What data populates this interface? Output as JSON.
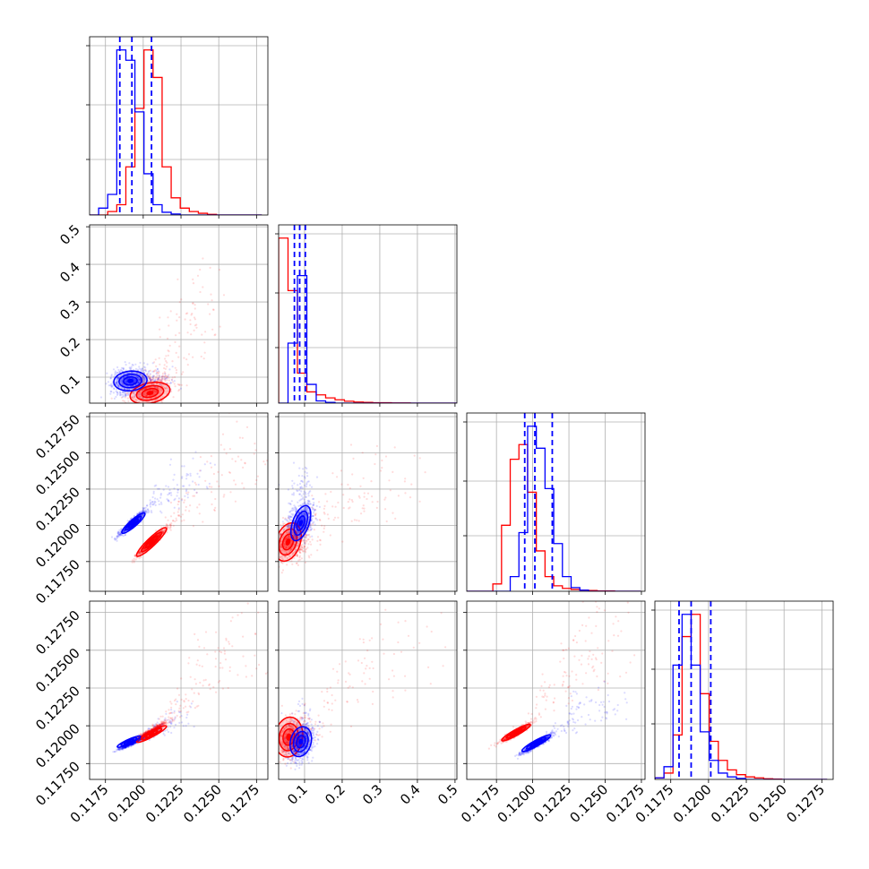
{
  "chart_data": {
    "type": "corner",
    "series_colors": {
      "a": "#0000ff",
      "b": "#ff0000"
    },
    "grid": true,
    "x_ticks": {
      "param1": [
        "0.1175",
        "0.1200",
        "0.1225",
        "0.1250",
        "0.1275"
      ],
      "param2": [
        "0.1",
        "0.2",
        "0.3",
        "0.4",
        "0.5"
      ],
      "param3": [
        "0.1175",
        "0.1200",
        "0.1225",
        "0.1250",
        "0.1275"
      ],
      "param4": [
        "0.1175",
        "0.1200",
        "0.1225",
        "0.1250",
        "0.1275"
      ]
    },
    "y_ticks": {
      "param2": [
        "0.1",
        "0.2",
        "0.3",
        "0.4",
        "0.5"
      ],
      "param3": [
        "0.11750",
        "0.12000",
        "0.12250",
        "0.12500",
        "0.12750"
      ],
      "param4": [
        "0.11750",
        "0.12000",
        "0.12250",
        "0.12500",
        "0.12750"
      ]
    },
    "tick_values": {
      "param1": [
        0.1175,
        0.12,
        0.1225,
        0.125,
        0.1275
      ],
      "param2": [
        0.1,
        0.2,
        0.3,
        0.4,
        0.5
      ],
      "param3": [
        0.1175,
        0.12,
        0.1225,
        0.125,
        0.1275
      ],
      "param4": [
        0.1175,
        0.12,
        0.1225,
        0.125,
        0.1275
      ]
    },
    "ranges": {
      "param1": [
        0.11645,
        0.12825
      ],
      "param2": [
        0.031,
        0.505
      ],
      "param3": [
        0.11545,
        0.12775
      ],
      "param4": [
        0.11645,
        0.12825
      ]
    },
    "quantiles": {
      "param1": [
        0.11845,
        0.11925,
        0.12055
      ],
      "param2": [
        0.073,
        0.087,
        0.102
      ],
      "param3": [
        0.11945,
        0.12015,
        0.12135
      ],
      "param4": [
        0.11805,
        0.11885,
        0.12015
      ]
    },
    "histograms": {
      "param1": {
        "edges": [
          0.11645,
          0.11705,
          0.11765,
          0.11825,
          0.11885,
          0.11945,
          0.12005,
          0.12065,
          0.12125,
          0.12185,
          0.12245,
          0.12305,
          0.12365,
          0.12425,
          0.12485,
          0.12545,
          0.12605,
          0.12665,
          0.12725,
          0.12785
        ],
        "a": [
          0,
          2,
          6,
          48,
          45,
          30,
          12,
          3,
          0.8,
          0.3,
          0,
          0,
          0,
          0,
          0,
          0,
          0,
          0,
          0
        ],
        "b": [
          0,
          0,
          1,
          3,
          14,
          31,
          48,
          40,
          14,
          5,
          2,
          1,
          0.5,
          0.2,
          0,
          0,
          0,
          0,
          0
        ]
      },
      "param2": {
        "edges": [
          0.031,
          0.056,
          0.081,
          0.106,
          0.131,
          0.156,
          0.181,
          0.206,
          0.231,
          0.256,
          0.281,
          0.306,
          0.331,
          0.356,
          0.381,
          0.406,
          0.431,
          0.456,
          0.481,
          0.505
        ],
        "a": [
          0,
          16,
          34,
          5,
          0.6,
          0.2,
          0,
          0,
          0,
          0,
          0,
          0,
          0,
          0,
          0,
          0,
          0,
          0,
          0
        ],
        "b": [
          44,
          30,
          8,
          3,
          2.2,
          1.4,
          0.9,
          0.5,
          0.3,
          0.2,
          0.1,
          0.1,
          0.05,
          0.05,
          0,
          0,
          0,
          0,
          0
        ]
      },
      "param3": {
        "edges": [
          0.11545,
          0.11605,
          0.11665,
          0.11725,
          0.11785,
          0.11845,
          0.11905,
          0.11965,
          0.12025,
          0.12085,
          0.12145,
          0.12205,
          0.12265,
          0.12325,
          0.12385,
          0.12445,
          0.12505,
          0.12565,
          0.12625,
          0.12685,
          0.12745
        ],
        "a": [
          0,
          0,
          0,
          0,
          0,
          4,
          16,
          45,
          39,
          28,
          13,
          4,
          1,
          0.3,
          0,
          0,
          0,
          0,
          0,
          0
        ],
        "b": [
          0,
          0,
          0,
          2,
          18,
          36,
          40,
          27,
          11,
          4,
          1.5,
          0.8,
          0.5,
          0.3,
          0.2,
          0.1,
          0.1,
          0,
          0,
          0
        ]
      },
      "param4": {
        "edges": [
          0.11645,
          0.11705,
          0.11765,
          0.11825,
          0.11885,
          0.11945,
          0.12005,
          0.12065,
          0.12125,
          0.12185,
          0.12245,
          0.12305,
          0.12365,
          0.12425,
          0.12485,
          0.12545,
          0.12605,
          0.12665,
          0.12725,
          0.12785
        ],
        "a": [
          0.5,
          4,
          36,
          52,
          36,
          15,
          6,
          2,
          0.8,
          0.3,
          0,
          0,
          0,
          0,
          0,
          0,
          0,
          0,
          0
        ],
        "b": [
          0.5,
          2,
          14,
          45,
          52,
          27,
          12,
          6,
          3,
          1.5,
          0.8,
          0.5,
          0.2,
          0.1,
          0,
          0,
          0,
          0,
          0
        ]
      }
    },
    "scatter_clouds": {
      "p1_p2": {
        "a": {
          "center": [
            0.11915,
            0.09
          ],
          "spread": [
            0.0006,
            0.018
          ],
          "tilt": 0.1,
          "n": 700,
          "tail": [
            0.0025,
            0.0
          ]
        },
        "b": {
          "center": [
            0.12045,
            0.07
          ],
          "spread": [
            0.0007,
            0.02
          ],
          "tilt": 0.2,
          "n": 600,
          "tail": [
            0.004,
            0.25
          ]
        }
      },
      "p1_p3": {
        "a": {
          "center": [
            0.11925,
            0.12015
          ],
          "spread": [
            0.0004,
            0.0004
          ],
          "tilt": 0.95,
          "n": 700,
          "tail": [
            0.004,
            0.0035
          ]
        },
        "b": {
          "center": [
            0.12055,
            0.11885
          ],
          "spread": [
            0.0005,
            0.0005
          ],
          "tilt": 0.95,
          "n": 700,
          "tail": [
            0.0075,
            0.0075
          ]
        }
      },
      "p2_p3": {
        "a": {
          "center": [
            0.09,
            0.12015
          ],
          "spread": [
            0.017,
            0.0006
          ],
          "tilt": 0.4,
          "n": 700,
          "tail": [
            0.0,
            0.003
          ]
        },
        "b": {
          "center": [
            0.065,
            0.11885
          ],
          "spread": [
            0.025,
            0.0007
          ],
          "tilt": 0.2,
          "n": 600,
          "tail": [
            0.3,
            0.005
          ]
        }
      },
      "p1_p4": {
        "a": {
          "center": [
            0.11925,
            0.11885
          ],
          "spread": [
            0.0004,
            0.0002
          ],
          "tilt": 0.95,
          "n": 700,
          "tail": [
            0.0035,
            0.002
          ]
        },
        "b": {
          "center": [
            0.12055,
            0.11965
          ],
          "spread": [
            0.0005,
            0.0003
          ],
          "tilt": 0.95,
          "n": 700,
          "tail": [
            0.0075,
            0.0075
          ]
        }
      },
      "p2_p4": {
        "a": {
          "center": [
            0.09,
            0.11885
          ],
          "spread": [
            0.018,
            0.0006
          ],
          "tilt": 0.3,
          "n": 700,
          "tail": [
            0.0,
            0.002
          ]
        },
        "b": {
          "center": [
            0.065,
            0.11925
          ],
          "spread": [
            0.025,
            0.0007
          ],
          "tilt": 0.2,
          "n": 600,
          "tail": [
            0.3,
            0.006
          ]
        }
      },
      "p3_p4": {
        "a": {
          "center": [
            0.12025,
            0.11875
          ],
          "spread": [
            0.0005,
            0.0003
          ],
          "tilt": 0.95,
          "n": 700,
          "tail": [
            0.005,
            0.003
          ]
        },
        "b": {
          "center": [
            0.11885,
            0.11955
          ],
          "spread": [
            0.0005,
            0.0003
          ],
          "tilt": 0.95,
          "n": 700,
          "tail": [
            0.0075,
            0.0075
          ]
        }
      }
    },
    "contours": {
      "p1_p2": {
        "a": {
          "center": [
            0.11915,
            0.09
          ],
          "sx": 0.0005,
          "sy": 0.012,
          "rho": 0.1
        },
        "b": {
          "center": [
            0.12045,
            0.058
          ],
          "sx": 0.0006,
          "sy": 0.013,
          "rho": 0.3
        }
      },
      "p1_p3": {
        "a": {
          "center": [
            0.11935,
            0.12015
          ],
          "sx": 0.00035,
          "sy": 0.00032,
          "rho": 0.9
        },
        "b": {
          "center": [
            0.12055,
            0.11885
          ],
          "sx": 0.00045,
          "sy": 0.00045,
          "rho": 0.92
        }
      },
      "p2_p3": {
        "a": {
          "center": [
            0.09,
            0.12015
          ],
          "sx": 0.012,
          "sy": 0.00055,
          "rho": 0.5
        },
        "b": {
          "center": [
            0.056,
            0.11885
          ],
          "sx": 0.016,
          "sy": 0.0006,
          "rho": 0.3
        }
      },
      "p1_p4": {
        "a": {
          "center": [
            0.11905,
            0.11895
          ],
          "sx": 0.00035,
          "sy": 0.00017,
          "rho": 0.9
        },
        "b": {
          "center": [
            0.12055,
            0.11945
          ],
          "sx": 0.00045,
          "sy": 0.00025,
          "rho": 0.92
        }
      },
      "p2_p4": {
        "a": {
          "center": [
            0.09,
            0.11895
          ],
          "sx": 0.013,
          "sy": 0.00045,
          "rho": 0.2
        },
        "b": {
          "center": [
            0.058,
            0.11925
          ],
          "sx": 0.017,
          "sy": 0.0006,
          "rho": 0.1
        }
      },
      "p3_p4": {
        "a": {
          "center": [
            0.12025,
            0.11885
          ],
          "sx": 0.00045,
          "sy": 0.00025,
          "rho": 0.92
        },
        "b": {
          "center": [
            0.11885,
            0.11955
          ],
          "sx": 0.00045,
          "sy": 0.00025,
          "rho": 0.92
        }
      }
    }
  }
}
